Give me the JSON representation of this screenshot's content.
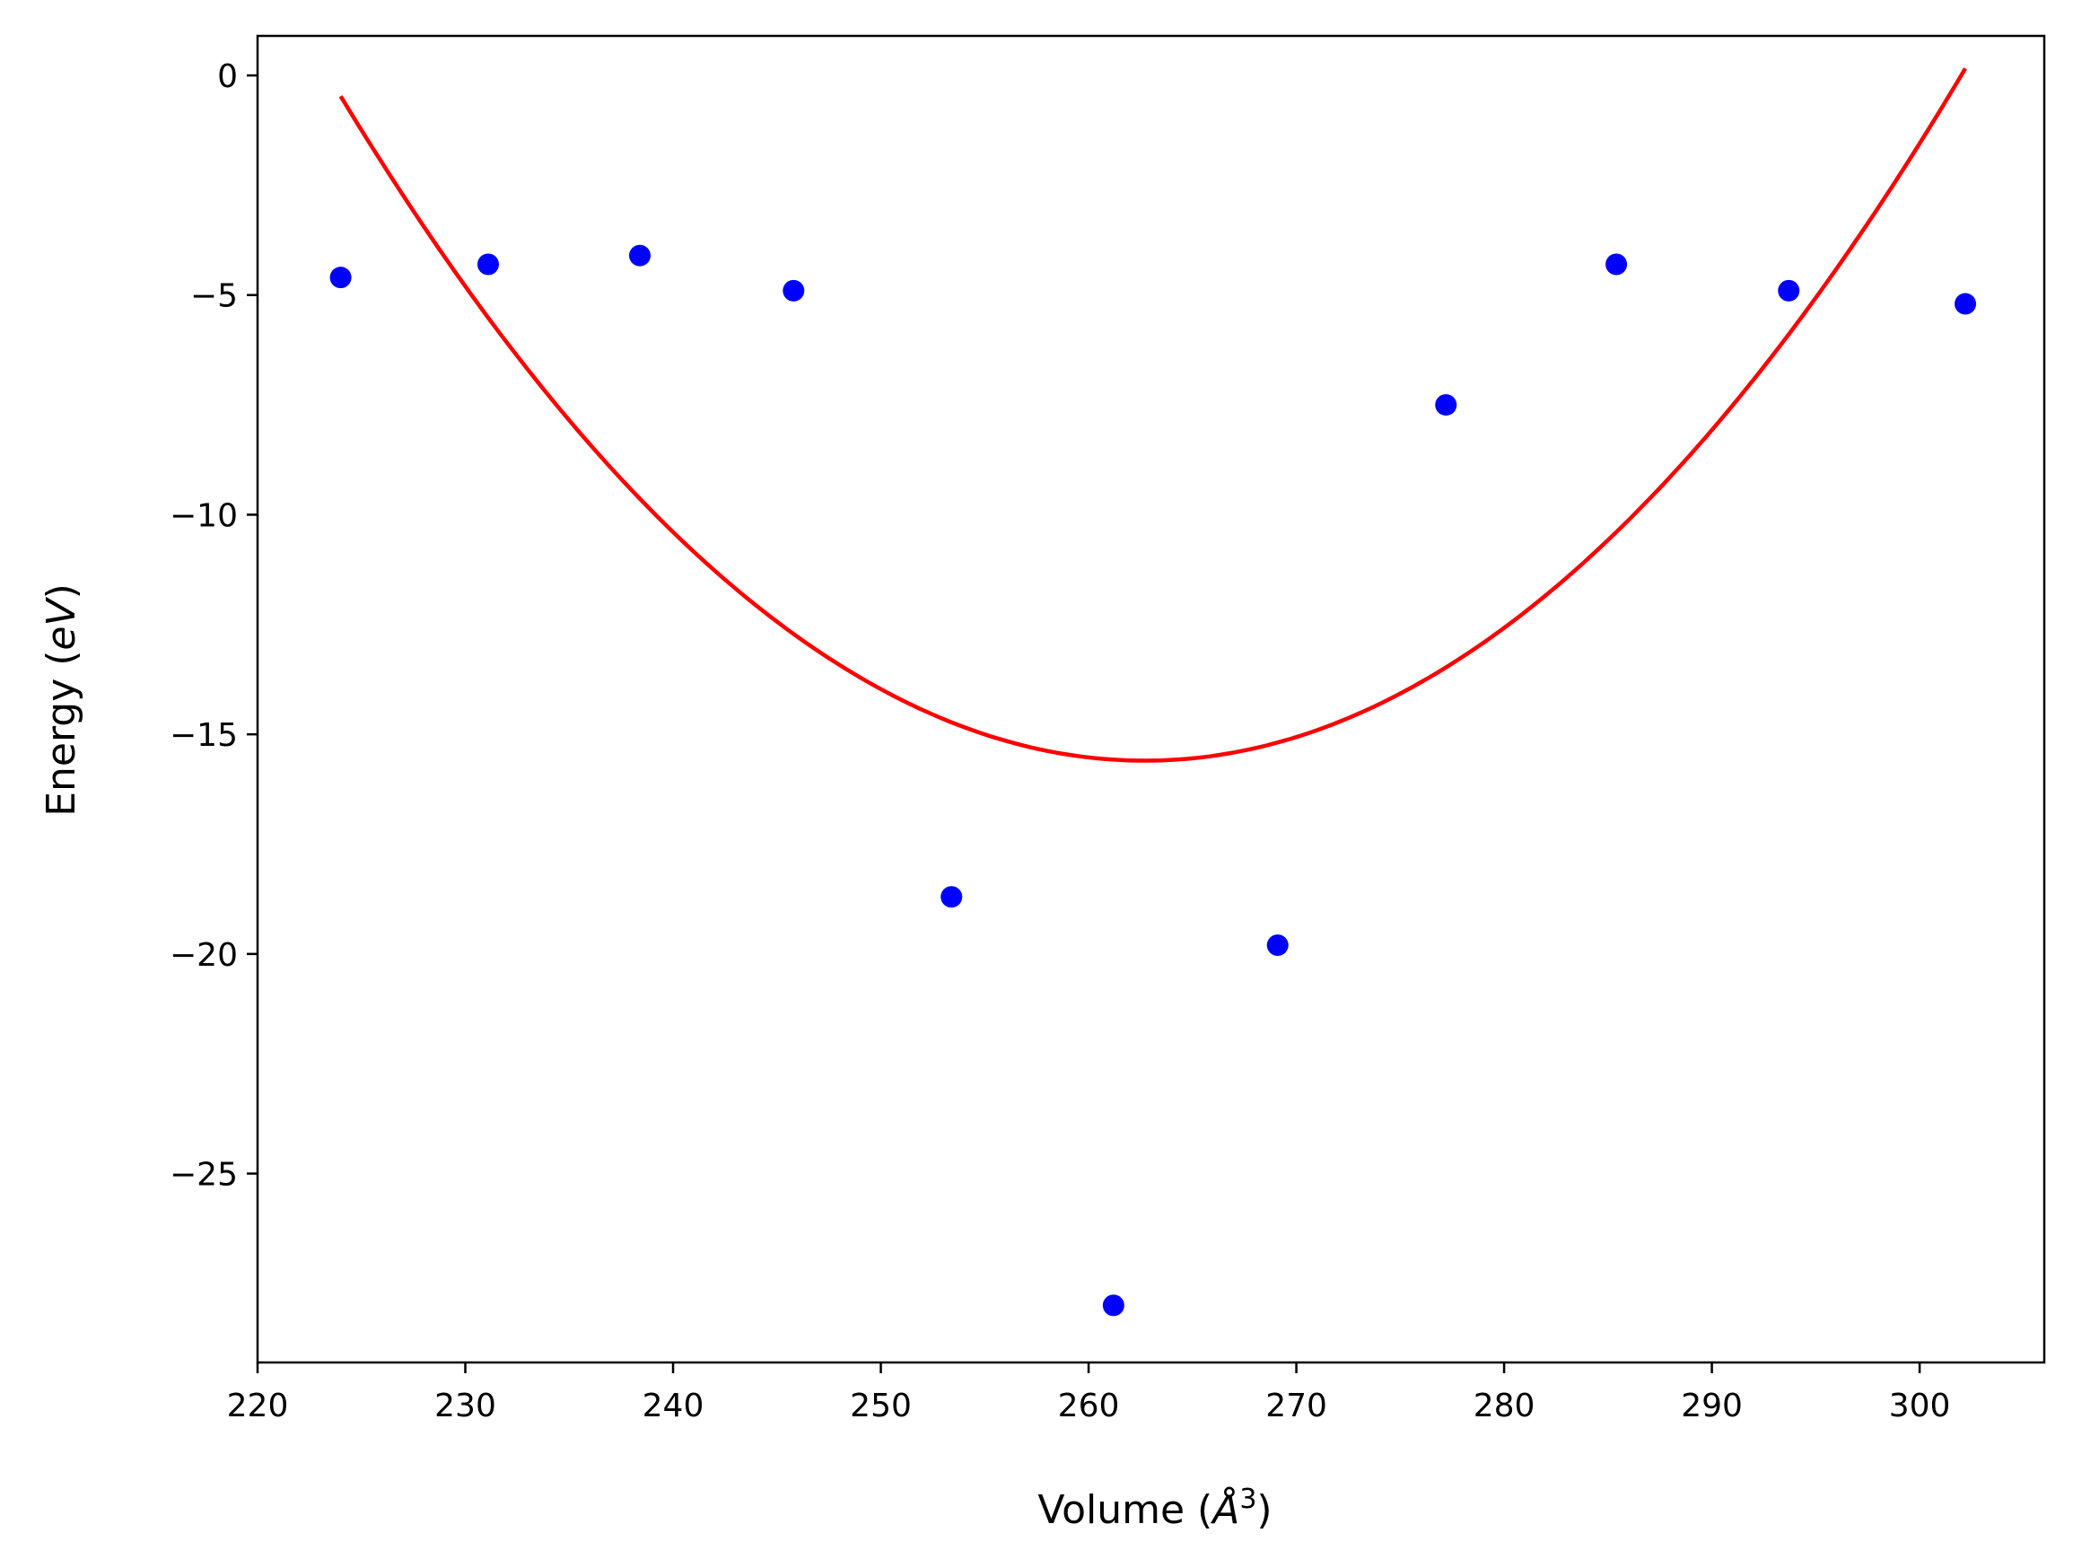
{
  "chart_data": {
    "type": "scatter",
    "xlabel": {
      "text": "Volume (",
      "var": "Å",
      "sup": "3",
      "close": ")"
    },
    "ylabel": {
      "text": "Energy (",
      "var": "eV",
      "close": ")"
    },
    "xlim": [
      220,
      306
    ],
    "ylim": [
      -29.3,
      0.9
    ],
    "xticks": [
      220,
      230,
      240,
      250,
      260,
      270,
      280,
      290,
      300
    ],
    "yticks": [
      0,
      -5,
      -10,
      -15,
      -20,
      -25
    ],
    "ytick_labels": [
      "0",
      "−5",
      "−10",
      "−15",
      "−20",
      "−25"
    ],
    "grid": false,
    "legend": "none",
    "series": [
      {
        "kind": "scatter",
        "color": "#0000ff",
        "x": [
          224.0,
          231.1,
          238.4,
          245.8,
          253.4,
          261.2,
          269.1,
          277.2,
          285.4,
          293.7,
          302.2
        ],
        "y": [
          -4.6,
          -4.3,
          -4.1,
          -4.9,
          -18.7,
          -28.0,
          -19.8,
          -7.5,
          -4.3,
          -4.9,
          -5.2
        ]
      },
      {
        "kind": "line",
        "color": "#ff0000",
        "fit": {
          "type": "quadratic",
          "vertex_x": 262.7,
          "vertex_y": -15.6,
          "curvature": 0.0101
        },
        "x_range": [
          224.0,
          302.2
        ]
      }
    ]
  }
}
